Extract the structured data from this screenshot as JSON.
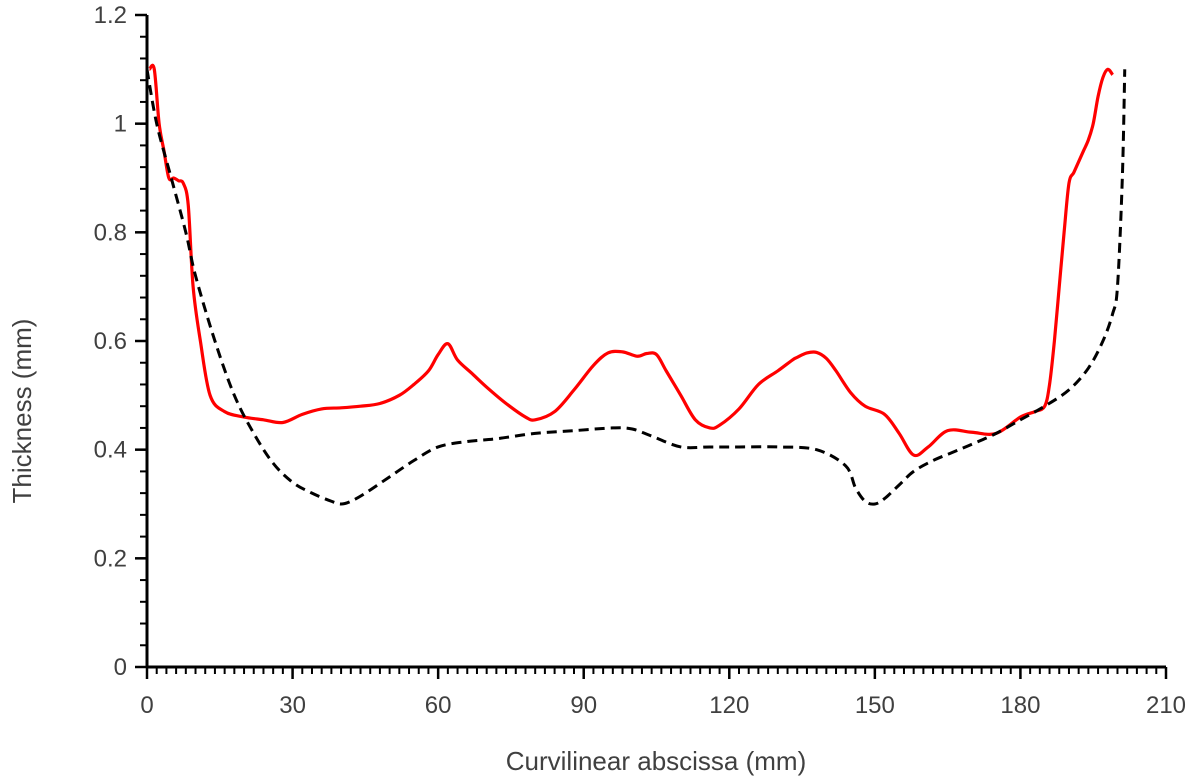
{
  "chart_data": {
    "type": "line",
    "title": "",
    "xlabel": "Curvilinear abscissa (mm)",
    "ylabel": "Thickness (mm)",
    "xlim": [
      0,
      210
    ],
    "ylim": [
      0,
      1.2
    ],
    "xticks": [
      0,
      30,
      60,
      90,
      120,
      150,
      180,
      210
    ],
    "yticks": [
      0,
      0.2,
      0.4,
      0.6,
      0.8,
      1,
      1.2
    ],
    "xtick_labels": [
      "0",
      "30",
      "60",
      "90",
      "120",
      "150",
      "180",
      "210"
    ],
    "ytick_labels": [
      "0",
      "0.2",
      "0.4",
      "0.6",
      "0.8",
      "1",
      "1.2"
    ],
    "grid": false,
    "legend": false,
    "series": [
      {
        "color": "#ff0000",
        "style": "solid",
        "x": [
          0.5,
          1.5,
          2.5,
          3.5,
          4.5,
          5.5,
          6.5,
          7.5,
          8.5,
          9.5,
          11,
          13,
          16,
          20,
          24,
          28,
          32,
          36,
          40,
          44,
          48,
          52,
          55,
          58,
          60,
          62,
          64,
          67,
          70,
          74,
          78,
          80,
          84,
          88,
          92,
          95,
          98,
          101,
          103,
          105,
          107,
          110,
          113,
          116,
          118,
          122,
          126,
          130,
          133,
          134,
          136,
          138,
          140,
          142,
          145,
          148,
          152,
          155,
          158,
          161,
          165,
          170,
          175,
          180,
          183,
          185,
          186,
          187,
          188,
          189,
          190,
          191,
          192,
          193,
          194,
          195,
          196,
          197,
          198,
          199
        ],
        "y": [
          1.1,
          1.1,
          1.0,
          0.95,
          0.9,
          0.9,
          0.895,
          0.89,
          0.85,
          0.7,
          0.6,
          0.5,
          0.47,
          0.46,
          0.455,
          0.45,
          0.465,
          0.475,
          0.477,
          0.48,
          0.485,
          0.5,
          0.52,
          0.545,
          0.575,
          0.595,
          0.565,
          0.54,
          0.515,
          0.485,
          0.46,
          0.455,
          0.47,
          0.51,
          0.555,
          0.578,
          0.58,
          0.572,
          0.577,
          0.575,
          0.545,
          0.5,
          0.455,
          0.44,
          0.445,
          0.475,
          0.52,
          0.545,
          0.565,
          0.57,
          0.578,
          0.579,
          0.568,
          0.545,
          0.505,
          0.48,
          0.465,
          0.43,
          0.39,
          0.405,
          0.435,
          0.432,
          0.43,
          0.46,
          0.47,
          0.48,
          0.52,
          0.6,
          0.7,
          0.8,
          0.89,
          0.91,
          0.93,
          0.95,
          0.97,
          1.0,
          1.05,
          1.085,
          1.1,
          1.09
        ]
      },
      {
        "color": "#000000",
        "style": "dashed",
        "x": [
          0,
          2,
          5,
          8,
          10,
          14,
          18,
          22,
          26,
          30,
          34,
          38,
          40,
          42,
          45,
          50,
          55,
          60,
          66,
          72,
          80,
          88,
          96,
          100,
          104,
          110,
          116,
          122,
          130,
          138,
          144,
          146,
          148,
          150,
          152,
          155,
          158,
          162,
          166,
          170,
          175,
          180,
          185,
          190,
          194,
          197,
          199,
          200,
          201,
          201.5
        ],
        "y": [
          1.1,
          1.0,
          0.9,
          0.8,
          0.72,
          0.6,
          0.5,
          0.43,
          0.375,
          0.34,
          0.32,
          0.305,
          0.3,
          0.305,
          0.32,
          0.35,
          0.38,
          0.405,
          0.415,
          0.42,
          0.43,
          0.435,
          0.44,
          0.438,
          0.425,
          0.405,
          0.405,
          0.405,
          0.405,
          0.4,
          0.37,
          0.33,
          0.305,
          0.3,
          0.31,
          0.335,
          0.36,
          0.38,
          0.395,
          0.41,
          0.43,
          0.455,
          0.48,
          0.51,
          0.55,
          0.6,
          0.65,
          0.7,
          0.9,
          1.1
        ]
      }
    ]
  }
}
